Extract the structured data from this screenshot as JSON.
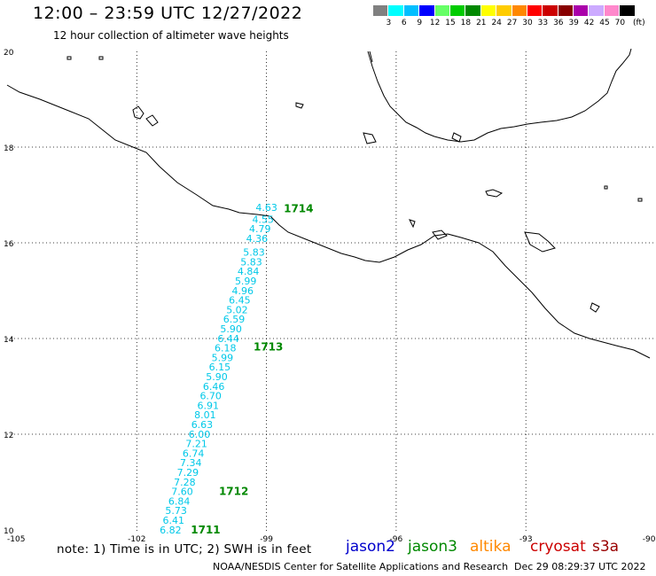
{
  "header": {
    "title": "12:00 – 23:59 UTC 12/27/2022",
    "subtitle": "12 hour collection of altimeter wave heights"
  },
  "legend": {
    "unit": "(ft)",
    "colors": [
      "#808080",
      "#00ffff",
      "#00bfff",
      "#0000ff",
      "#66ff66",
      "#00cc00",
      "#008800",
      "#ffff00",
      "#ffcc00",
      "#ff8800",
      "#ff0000",
      "#cc0000",
      "#880000",
      "#aa00aa",
      "#ccaaff",
      "#ff88cc",
      "#000000"
    ],
    "labels": [
      "3",
      "6",
      "9",
      "12",
      "15",
      "18",
      "21",
      "24",
      "27",
      "30",
      "33",
      "36",
      "39",
      "42",
      "45",
      "70"
    ]
  },
  "map": {
    "lat_labels": [
      "20",
      "18",
      "16",
      "14",
      "12",
      "10"
    ],
    "lon_labels": [
      "-105",
      "-102",
      "-99",
      "-96",
      "-93",
      "-90"
    ],
    "wave_color": "#00c8e8",
    "time_color": "#008800",
    "wave_labels": [
      {
        "lon": -99.0,
        "lat": 16.67,
        "value": "4.63"
      },
      {
        "lon": -99.08,
        "lat": 16.42,
        "value": "4.55"
      },
      {
        "lon": -99.15,
        "lat": 16.22,
        "value": "4.79"
      },
      {
        "lon": -99.22,
        "lat": 16.02,
        "value": "4.36"
      },
      {
        "lon": -99.29,
        "lat": 15.73,
        "value": "5.83"
      },
      {
        "lon": -99.35,
        "lat": 15.53,
        "value": "5.83"
      },
      {
        "lon": -99.42,
        "lat": 15.33,
        "value": "4.84"
      },
      {
        "lon": -99.48,
        "lat": 15.13,
        "value": "5.99"
      },
      {
        "lon": -99.55,
        "lat": 14.93,
        "value": "4.96"
      },
      {
        "lon": -99.62,
        "lat": 14.73,
        "value": "6.45"
      },
      {
        "lon": -99.68,
        "lat": 14.53,
        "value": "5.02"
      },
      {
        "lon": -99.75,
        "lat": 14.33,
        "value": "6.59"
      },
      {
        "lon": -99.82,
        "lat": 14.13,
        "value": "5.90"
      },
      {
        "lon": -99.88,
        "lat": 13.93,
        "value": "6.44"
      },
      {
        "lon": -99.95,
        "lat": 13.73,
        "value": "6.18"
      },
      {
        "lon": -100.02,
        "lat": 13.53,
        "value": "5.99"
      },
      {
        "lon": -100.08,
        "lat": 13.33,
        "value": "6.15"
      },
      {
        "lon": -100.15,
        "lat": 13.13,
        "value": "5.90"
      },
      {
        "lon": -100.22,
        "lat": 12.93,
        "value": "6.46"
      },
      {
        "lon": -100.29,
        "lat": 12.73,
        "value": "6.70"
      },
      {
        "lon": -100.35,
        "lat": 12.53,
        "value": "6.91"
      },
      {
        "lon": -100.42,
        "lat": 12.33,
        "value": "8.01"
      },
      {
        "lon": -100.49,
        "lat": 12.13,
        "value": "6.63"
      },
      {
        "lon": -100.55,
        "lat": 11.93,
        "value": "6.00"
      },
      {
        "lon": -100.62,
        "lat": 11.73,
        "value": "7.21"
      },
      {
        "lon": -100.69,
        "lat": 11.53,
        "value": "6.74"
      },
      {
        "lon": -100.75,
        "lat": 11.33,
        "value": "7.34"
      },
      {
        "lon": -100.82,
        "lat": 11.13,
        "value": "7.29"
      },
      {
        "lon": -100.89,
        "lat": 10.93,
        "value": "7.28"
      },
      {
        "lon": -100.95,
        "lat": 10.73,
        "value": "7.60"
      },
      {
        "lon": -101.02,
        "lat": 10.53,
        "value": "6.84"
      },
      {
        "lon": -101.09,
        "lat": 10.33,
        "value": "5.73"
      },
      {
        "lon": -101.15,
        "lat": 10.13,
        "value": "6.41"
      },
      {
        "lon": -101.22,
        "lat": 9.93,
        "value": "6.82"
      }
    ],
    "time_labels": [
      {
        "lon": -98.6,
        "lat": 16.64,
        "value": "1714"
      },
      {
        "lon": -99.3,
        "lat": 13.75,
        "value": "1713"
      },
      {
        "lon": -100.1,
        "lat": 10.73,
        "value": "1712"
      },
      {
        "lon": -100.75,
        "lat": 9.93,
        "value": "1711"
      }
    ]
  },
  "footer": {
    "note": "note:  1) Time is in UTC;  2) SWH is in feet",
    "satellites": [
      {
        "name": "jason2",
        "color": "#0000cc"
      },
      {
        "name": "jason3",
        "color": "#008800"
      },
      {
        "name": "altika",
        "color": "#ff8800"
      },
      {
        "name": "cryosat",
        "color": "#cc0000"
      },
      {
        "name": "s3a",
        "color": "#990000"
      }
    ],
    "credit": "NOAA/NESDIS Center for Satellite Applications and Research",
    "timestamp": "Dec 29 08:29:37 UTC 2022"
  }
}
